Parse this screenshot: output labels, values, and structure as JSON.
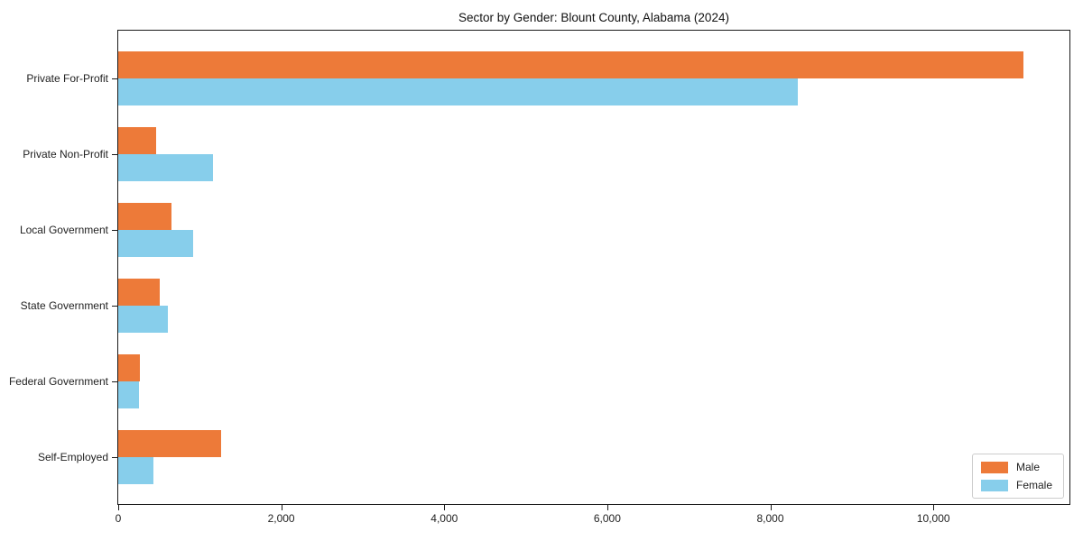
{
  "title": "Sector by Gender: Blount County, Alabama (2024)",
  "chart_data": {
    "type": "bar",
    "orientation": "horizontal",
    "title": "Sector by Gender: Blount County, Alabama (2024)",
    "categories": [
      "Private For-Profit",
      "Private Non-Profit",
      "Local Government",
      "State Government",
      "Federal Government",
      "Self-Employed"
    ],
    "series": [
      {
        "name": "Male",
        "color": "#ed7a39",
        "values": [
          11100,
          460,
          650,
          505,
          270,
          1260
        ]
      },
      {
        "name": "Female",
        "color": "#87ceeb",
        "values": [
          8340,
          1160,
          915,
          610,
          255,
          430
        ]
      }
    ],
    "xlabel": "",
    "ylabel": "",
    "xlim": [
      0,
      11670
    ],
    "x_ticks": [
      0,
      2000,
      4000,
      6000,
      8000,
      10000
    ],
    "x_tick_labels": [
      "0",
      "2,000",
      "4,000",
      "6,000",
      "8,000",
      "10,000"
    ],
    "grid": false,
    "legend_position": "lower right"
  }
}
